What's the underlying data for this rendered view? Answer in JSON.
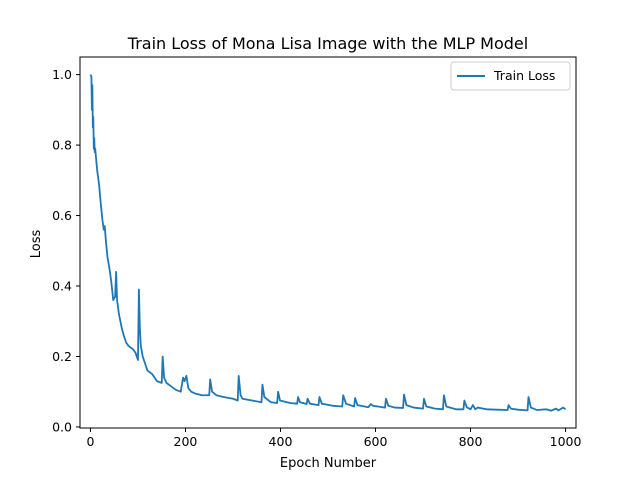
{
  "chart_data": {
    "type": "line",
    "title": "Train Loss of Mona Lisa Image with the MLP Model",
    "xlabel": "Epoch Number",
    "ylabel": "Loss",
    "xlim": [
      -22,
      1022
    ],
    "ylim": [
      -0.003,
      1.05
    ],
    "xticks": [
      0,
      200,
      400,
      600,
      800,
      1000
    ],
    "yticks": [
      0.0,
      0.2,
      0.4,
      0.6,
      0.8,
      1.0
    ],
    "xtick_labels": [
      "0",
      "200",
      "400",
      "600",
      "800",
      "1000"
    ],
    "ytick_labels": [
      "0.0",
      "0.2",
      "0.4",
      "0.6",
      "0.8",
      "1.0"
    ],
    "grid": false,
    "legend_position": "top-right",
    "series": [
      {
        "name": "Train Loss",
        "color": "#1f77b4",
        "x": [
          0,
          2,
          3,
          4,
          5,
          6,
          7,
          8,
          9,
          10,
          12,
          14,
          16,
          18,
          20,
          22,
          25,
          28,
          30,
          33,
          36,
          40,
          44,
          48,
          52,
          54,
          56,
          58,
          60,
          63,
          66,
          70,
          75,
          80,
          85,
          90,
          95,
          100,
          102,
          104,
          106,
          110,
          115,
          120,
          130,
          140,
          150,
          152,
          155,
          160,
          170,
          180,
          190,
          195,
          198,
          202,
          206,
          212,
          220,
          235,
          250,
          252,
          256,
          265,
          280,
          300,
          310,
          312,
          316,
          320,
          340,
          360,
          362,
          366,
          380,
          393,
          395,
          399,
          420,
          435,
          437,
          441,
          455,
          457,
          462,
          480,
          482,
          487,
          510,
          530,
          532,
          538,
          555,
          557,
          562,
          585,
          590,
          595,
          620,
          622,
          627,
          640,
          658,
          660,
          665,
          680,
          700,
          702,
          707,
          725,
          742,
          744,
          749,
          770,
          785,
          787,
          792,
          800,
          805,
          810,
          815,
          835,
          855,
          878,
          880,
          885,
          900,
          920,
          922,
          927,
          940,
          960,
          970,
          980,
          985,
          995,
          1000
        ],
        "values": [
          1.0,
          0.995,
          0.9,
          0.97,
          0.85,
          0.88,
          0.79,
          0.82,
          0.78,
          0.79,
          0.76,
          0.73,
          0.71,
          0.69,
          0.66,
          0.63,
          0.59,
          0.56,
          0.57,
          0.52,
          0.48,
          0.45,
          0.41,
          0.36,
          0.37,
          0.44,
          0.36,
          0.34,
          0.32,
          0.3,
          0.28,
          0.26,
          0.24,
          0.23,
          0.225,
          0.22,
          0.21,
          0.19,
          0.39,
          0.28,
          0.23,
          0.2,
          0.18,
          0.16,
          0.15,
          0.13,
          0.125,
          0.2,
          0.14,
          0.125,
          0.115,
          0.105,
          0.1,
          0.14,
          0.13,
          0.145,
          0.11,
          0.1,
          0.095,
          0.09,
          0.09,
          0.135,
          0.1,
          0.09,
          0.085,
          0.08,
          0.075,
          0.145,
          0.09,
          0.08,
          0.075,
          0.07,
          0.12,
          0.085,
          0.07,
          0.068,
          0.1,
          0.075,
          0.068,
          0.066,
          0.085,
          0.07,
          0.065,
          0.08,
          0.066,
          0.062,
          0.085,
          0.066,
          0.06,
          0.058,
          0.09,
          0.066,
          0.058,
          0.082,
          0.062,
          0.056,
          0.065,
          0.06,
          0.055,
          0.08,
          0.06,
          0.055,
          0.054,
          0.092,
          0.062,
          0.055,
          0.052,
          0.08,
          0.058,
          0.052,
          0.05,
          0.09,
          0.058,
          0.05,
          0.05,
          0.075,
          0.056,
          0.05,
          0.062,
          0.05,
          0.055,
          0.05,
          0.049,
          0.048,
          0.062,
          0.052,
          0.049,
          0.047,
          0.085,
          0.055,
          0.048,
          0.05,
          0.046,
          0.052,
          0.047,
          0.055,
          0.05
        ]
      }
    ]
  }
}
